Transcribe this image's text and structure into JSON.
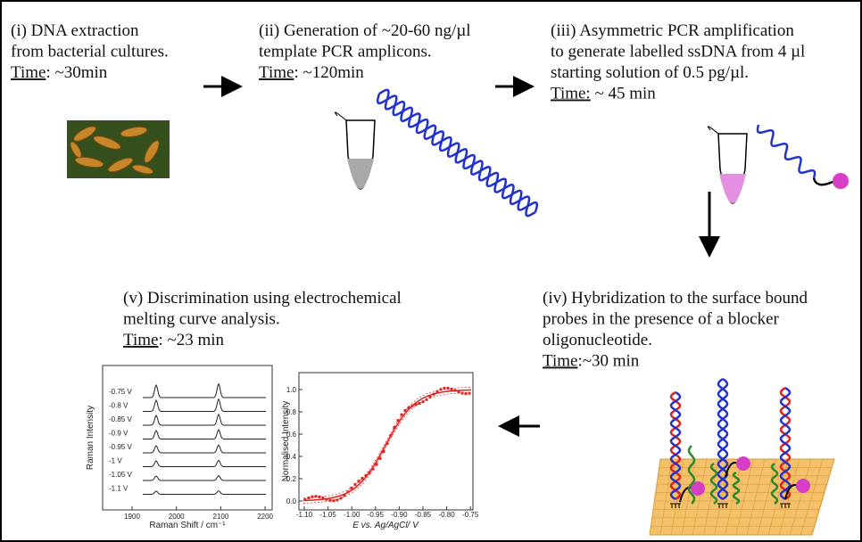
{
  "steps": [
    {
      "lines": [
        "(i)   DNA extraction",
        " from bacterial cultures."
      ],
      "time_label": "Time",
      "time_value": ": ~30min"
    },
    {
      "lines": [
        "(ii) Generation of ~20-60 ng/µl",
        "template PCR amplicons."
      ],
      "time_label": "Time",
      "time_value": ": ~120min"
    },
    {
      "lines": [
        "(iii) Asymmetric PCR amplification",
        "to generate labelled ssDNA  from 4 µl",
        "starting solution of 0.5 pg/µl."
      ],
      "time_label": "Time:",
      "time_value": " ~ 45 min"
    },
    {
      "lines": [
        "(iv) Hybridization to the surface bound",
        "probes in the presence of a blocker",
        "oligonucleotide."
      ],
      "time_label": "Time",
      "time_value": ":~30 min"
    },
    {
      "lines": [
        "(v) Discrimination using electrochemical",
        "melting curve analysis."
      ],
      "time_label": "Time",
      "time_value": ": ~23 min"
    }
  ],
  "raman_chart": {
    "y_label": "Raman Intensity",
    "x_label": "Raman Shift / cm⁻¹",
    "x_tick_labels": [
      "1900",
      "2000",
      "2100",
      "2200"
    ],
    "trace_labels": [
      "-0.75 V",
      "-0.8 V",
      "-0.85 V",
      "-0.9 V",
      "-0.95 V",
      "-1 V",
      "-1.05 V",
      "-1.1 V"
    ]
  },
  "melting_chart": {
    "y_label": "Normalised Intensity",
    "x_label": "E vs. Ag/AgCl/ V",
    "x_tick_labels": [
      "-1.10",
      "-1.05",
      "-1.00",
      "-0.95",
      "-0.90",
      "-0.85",
      "-0.80",
      "-0.75"
    ],
    "y_tick_labels": [
      "0.0",
      "0.2",
      "0.4",
      "0.6",
      "0.8",
      "1.0"
    ]
  }
}
